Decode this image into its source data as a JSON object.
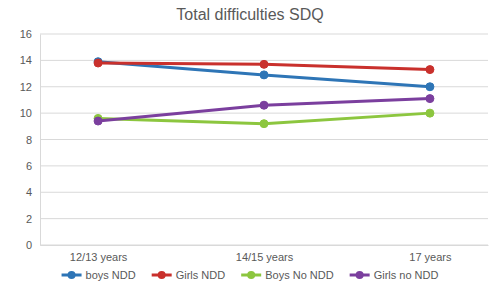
{
  "chart_data": {
    "type": "line",
    "title": "Total difficulties SDQ",
    "categories": [
      "12/13 years",
      "14/15 years",
      "17 years"
    ],
    "series": [
      {
        "name": "boys NDD",
        "color": "#2e75b6",
        "values": [
          13.9,
          12.9,
          12.0
        ],
        "marker": "circle"
      },
      {
        "name": "Girls NDD",
        "color": "#c9302c",
        "values": [
          13.8,
          13.7,
          13.3
        ],
        "marker": "circle"
      },
      {
        "name": "Boys No NDD",
        "color": "#8cc63f",
        "values": [
          9.6,
          9.2,
          10.0
        ],
        "marker": "circle"
      },
      {
        "name": "Girls no NDD",
        "color": "#7b3f9e",
        "values": [
          9.4,
          10.6,
          11.1
        ],
        "marker": "circle"
      }
    ],
    "ylim": [
      0,
      16
    ],
    "yticks": [
      0,
      2,
      4,
      6,
      8,
      10,
      12,
      14,
      16
    ],
    "grid": true,
    "legend": "bottom"
  }
}
